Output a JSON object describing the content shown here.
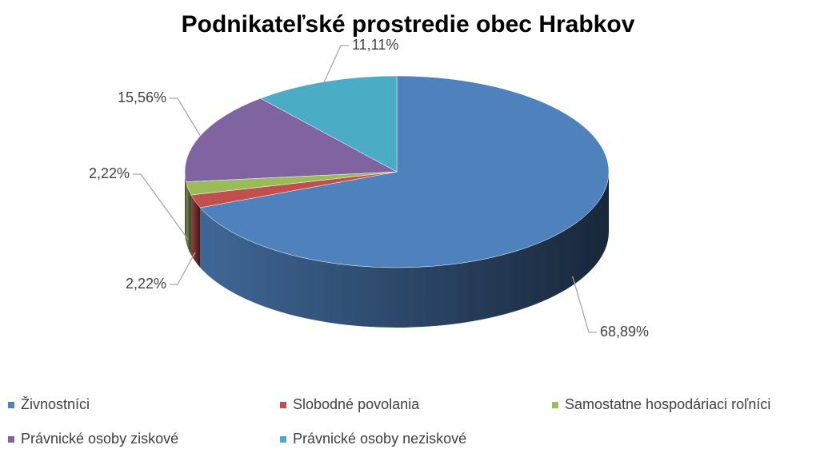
{
  "chart_data": {
    "type": "pie",
    "title": "Podnikateľské prostredie obec Hrabkov",
    "categories": [
      "Živnostníci",
      "Slobodné povolania",
      "Samostatne hospodáriaci roľníci",
      "Právnické osoby ziskové",
      "Právnické osoby neziskové"
    ],
    "values": [
      68.89,
      2.22,
      2.22,
      15.56,
      11.11
    ],
    "value_labels": [
      "68,89%",
      "2,22%",
      "2,22%",
      "15,56%",
      "11,11%"
    ],
    "colors": [
      "#4f81bd",
      "#c0504d",
      "#9bbb59",
      "#8064a2",
      "#4bacc6"
    ]
  }
}
